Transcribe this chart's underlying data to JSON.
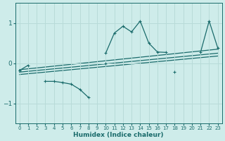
{
  "xlabel": "Humidex (Indice chaleur)",
  "background_color": "#ceecea",
  "grid_color": "#b8dbd8",
  "line_color": "#1a6b6b",
  "xlim": [
    -0.5,
    23.5
  ],
  "ylim": [
    -1.5,
    1.5
  ],
  "yticks": [
    -1,
    0,
    1
  ],
  "xticks": [
    0,
    1,
    2,
    3,
    4,
    5,
    6,
    7,
    8,
    9,
    10,
    11,
    12,
    13,
    14,
    15,
    16,
    17,
    18,
    19,
    20,
    21,
    22,
    23
  ],
  "series_main": [
    [
      0,
      -0.18
    ],
    [
      1,
      -0.05
    ],
    [
      2,
      null
    ],
    [
      3,
      null
    ],
    [
      4,
      null
    ],
    [
      5,
      null
    ],
    [
      6,
      null
    ],
    [
      7,
      null
    ],
    [
      8,
      null
    ],
    [
      9,
      null
    ],
    [
      10,
      0.25
    ],
    [
      11,
      0.75
    ],
    [
      12,
      0.92
    ],
    [
      13,
      0.78
    ],
    [
      14,
      1.05
    ],
    [
      15,
      0.5
    ],
    [
      16,
      0.28
    ],
    [
      17,
      0.27
    ],
    [
      18,
      null
    ],
    [
      19,
      null
    ],
    [
      20,
      null
    ],
    [
      21,
      0.27
    ],
    [
      22,
      1.05
    ],
    [
      23,
      0.38
    ]
  ],
  "series_lower": [
    [
      0,
      -0.18
    ],
    [
      1,
      null
    ],
    [
      2,
      null
    ],
    [
      3,
      -0.45
    ],
    [
      4,
      -0.45
    ],
    [
      5,
      -0.48
    ],
    [
      6,
      -0.52
    ],
    [
      7,
      -0.65
    ],
    [
      8,
      -0.85
    ],
    [
      9,
      null
    ],
    [
      10,
      0.0
    ],
    [
      11,
      null
    ],
    [
      12,
      null
    ],
    [
      13,
      null
    ],
    [
      14,
      null
    ],
    [
      15,
      null
    ],
    [
      16,
      null
    ],
    [
      17,
      null
    ],
    [
      18,
      -0.22
    ],
    [
      19,
      null
    ],
    [
      20,
      null
    ],
    [
      21,
      null
    ],
    [
      22,
      null
    ],
    [
      23,
      null
    ]
  ],
  "trend_lines": [
    {
      "x": [
        0,
        23
      ],
      "y": [
        -0.28,
        0.18
      ]
    },
    {
      "x": [
        0,
        23
      ],
      "y": [
        -0.22,
        0.25
      ]
    },
    {
      "x": [
        0,
        23
      ],
      "y": [
        -0.16,
        0.35
      ]
    }
  ]
}
